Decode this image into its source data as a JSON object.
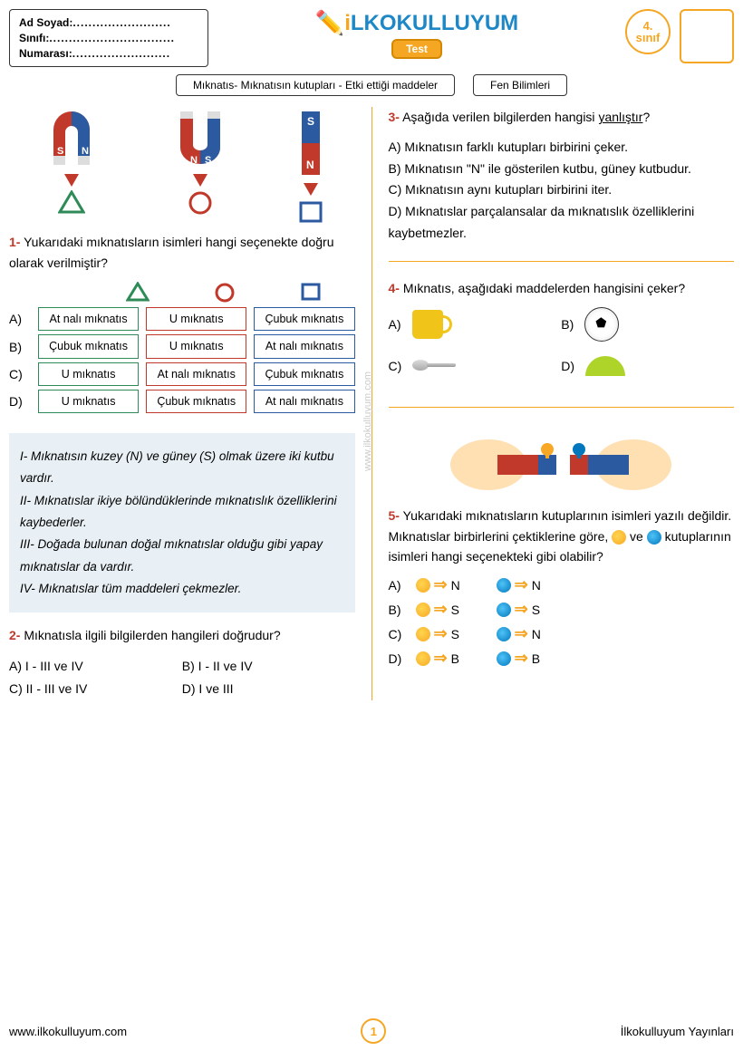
{
  "header": {
    "name_label": "Ad Soyad:",
    "class_label": "Sınıfı:",
    "number_label": "Numarası:",
    "logo_main": "LKOKULLUYUM",
    "test_badge": "Test",
    "grade_top": "4.",
    "grade_bottom": "sınıf"
  },
  "subject": {
    "topic": "Mıknatıs- Mıknatısın kutupları - Etki ettiği maddeler",
    "course": "Fen Bilimleri"
  },
  "q1": {
    "num": "1-",
    "text": "Yukarıdaki mıknatısların isimleri hangi seçenekte doğru olarak verilmiştir?",
    "rows": [
      {
        "label": "A)",
        "cells": [
          "At nalı mıknatıs",
          "U mıknatıs",
          "Çubuk mıknatıs"
        ]
      },
      {
        "label": "B)",
        "cells": [
          "Çubuk mıknatıs",
          "U mıknatıs",
          "At nalı mıknatıs"
        ]
      },
      {
        "label": "C)",
        "cells": [
          "U mıknatıs",
          "At nalı mıknatıs",
          "Çubuk mıknatıs"
        ]
      },
      {
        "label": "D)",
        "cells": [
          "U mıknatıs",
          "Çubuk mıknatıs",
          "At nalı mıknatıs"
        ]
      }
    ]
  },
  "q2": {
    "info": [
      "I- Mıknatısın kuzey (N) ve güney (S) olmak üzere iki kutbu vardır.",
      "II- Mıknatıslar ikiye bölündüklerinde mıknatıslık özelliklerini kaybederler.",
      "III- Doğada bulunan doğal mıknatıslar olduğu gibi yapay mıknatıslar da vardır.",
      "IV- Mıknatıslar tüm maddeleri çekmezler."
    ],
    "num": "2-",
    "text": "Mıknatısla ilgili bilgilerden hangileri doğrudur?",
    "opts": [
      "A) I - III ve IV",
      "B) I - II ve IV",
      "C) II - III ve IV",
      "D) I ve III"
    ]
  },
  "q3": {
    "num": "3-",
    "text": "Aşağıda verilen bilgilerden hangisi ",
    "underline": "yanlıştır",
    "text2": "?",
    "opts": [
      "A) Mıknatısın farklı kutupları birbirini çeker.",
      "B) Mıknatısın \"N\" ile gösterilen kutbu, güney kutbudur.",
      "C) Mıknatısın aynı kutupları birbirini iter.",
      "D) Mıknatıslar parçalansalar da mıknatıslık özelliklerini kaybetmezler."
    ]
  },
  "q4": {
    "num": "4-",
    "text": "Mıknatıs, aşağıdaki maddelerden hangisini çeker?",
    "opts": [
      "A)",
      "B)",
      "C)",
      "D)"
    ]
  },
  "q5": {
    "num": "5-",
    "text": "Yukarıdaki mıknatısların kutuplarının isimleri yazılı değildir. Mıknatıslar birbirlerini çektiklerine göre, ",
    "text2": " ve ",
    "text3": " kutuplarının isimleri hangi seçenekteki gibi olabilir?",
    "rows": [
      {
        "label": "A)",
        "y": "N",
        "b": "N"
      },
      {
        "label": "B)",
        "y": "S",
        "b": "S"
      },
      {
        "label": "C)",
        "y": "S",
        "b": "N"
      },
      {
        "label": "D)",
        "y": "B",
        "b": "B"
      }
    ]
  },
  "footer": {
    "url": "www.ilkokulluyum.com",
    "page": "1",
    "publisher": "İlkokulluyum Yayınları"
  },
  "watermark": "www.ilkokulluyum.com",
  "colors": {
    "green": "#2e8b57",
    "red": "#c0392b",
    "blue": "#2c5aa0",
    "orange": "#f5a623"
  }
}
